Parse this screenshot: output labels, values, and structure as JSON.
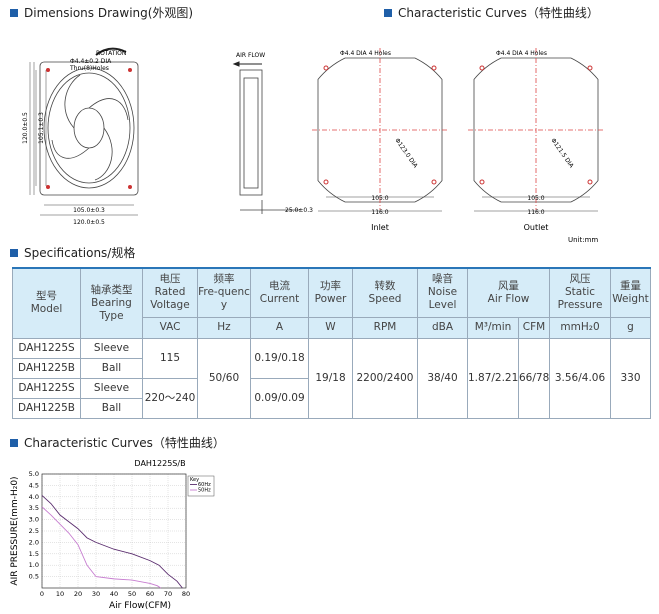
{
  "sections": {
    "dimensions": "Dimensions Drawing(外观图)",
    "curves_top": "Characteristic Curves（特性曲线）",
    "specs": "Specifications/规格",
    "curves": "Characteristic Curves（特性曲线）"
  },
  "drawing": {
    "rotation": "ROTATION",
    "hole_dia": "Φ4.4±0.2 DIA",
    "holes": "Thru(8)Holes",
    "height_outer": "120.0±0.5",
    "height_inner": "105.1±0.3",
    "width_inner": "105.0±0.3",
    "width_outer": "120.0±0.5",
    "air_flow": "AIR FLOW",
    "depth": "25.0±0.3",
    "inlet": {
      "holes": "Φ4.4 DIA 4 Holes",
      "dia": "Φ123.0 DIA",
      "inner": "105.0",
      "outer": "116.0",
      "label": "Inlet"
    },
    "outlet": {
      "holes": "Φ4.4 DIA 4 Holes",
      "dia": "Φ121.5 DIA",
      "inner": "105.0",
      "outer": "116.0",
      "label": "Outlet"
    },
    "unit": "Unit:mm"
  },
  "table": {
    "columns": [
      {
        "zh": "型号",
        "en": "Model"
      },
      {
        "zh": "轴承类型",
        "en": "Bearing Type"
      },
      {
        "zh": "电压",
        "en": "Rated Voltage",
        "unit": "VAC"
      },
      {
        "zh": "频率",
        "en": "Fre-quency",
        "unit": "Hz"
      },
      {
        "zh": "电流",
        "en": "Current",
        "unit": "A"
      },
      {
        "zh": "功率",
        "en": "Power",
        "unit": "W"
      },
      {
        "zh": "转数",
        "en": "Speed",
        "unit": "RPM"
      },
      {
        "zh": "噪音",
        "en": "Noise Level",
        "unit": "dBA"
      },
      {
        "zh": "风量",
        "en": "Air Flow",
        "units": [
          "M³/min",
          "CFM"
        ]
      },
      {
        "zh": "风压",
        "en": "Static Pressure",
        "unit": "mmH₂0"
      },
      {
        "zh": "重量",
        "en": "Weight",
        "unit": "g"
      }
    ],
    "rows": [
      {
        "model": "DAH1225S",
        "bearing": "Sleeve"
      },
      {
        "model": "DAH1225B",
        "bearing": "Ball"
      },
      {
        "model": "DAH1225S",
        "bearing": "Sleeve"
      },
      {
        "model": "DAH1225B",
        "bearing": "Ball"
      }
    ],
    "voltage": [
      "115",
      "220～240"
    ],
    "frequency": "50/60",
    "current": [
      "0.19/0.18",
      "0.09/0.09"
    ],
    "power": "19/18",
    "speed": "2200/2400",
    "noise": "38/40",
    "airflow_m3": "1.87/2.21",
    "airflow_cfm": "66/78",
    "pressure": "3.56/4.06",
    "weight": "330"
  },
  "chart_data": {
    "type": "line",
    "title": "DAH1225S/B",
    "xlabel": "Air Flow(CFM)",
    "ylabel": "AIR PRESSURE(mm-H₂0)",
    "legend_title": "Key",
    "legend": "upper right",
    "grid": true,
    "xlim": [
      0,
      80
    ],
    "xticks": [
      0,
      10,
      20,
      30,
      40,
      50,
      60,
      70,
      80
    ],
    "ylim": [
      0,
      5
    ],
    "yticks": [
      0.5,
      {
        "value": 1,
        "label": "1.0"
      },
      1.5,
      {
        "value": 2,
        "label": "2.0"
      },
      2.5,
      {
        "value": 3,
        "label": "3.0"
      },
      3.5,
      {
        "value": 4,
        "label": "4.0"
      },
      4.5,
      {
        "value": 5,
        "label": "5.0"
      }
    ],
    "series": [
      {
        "name": "60Hz",
        "color": "#5a2d6e",
        "x": [
          0,
          5,
          10,
          15,
          20,
          25,
          30,
          40,
          50,
          60,
          65,
          70,
          75,
          78
        ],
        "values": [
          4.06,
          3.7,
          3.2,
          2.9,
          2.6,
          2.2,
          2.0,
          1.7,
          1.5,
          1.2,
          1.0,
          0.6,
          0.3,
          0
        ]
      },
      {
        "name": "50Hz",
        "color": "#c77dd0",
        "x": [
          0,
          5,
          10,
          15,
          20,
          25,
          30,
          40,
          50,
          60,
          64,
          66
        ],
        "values": [
          3.56,
          3.2,
          2.8,
          2.4,
          1.9,
          1.0,
          0.5,
          0.4,
          0.35,
          0.2,
          0.1,
          0
        ]
      }
    ]
  }
}
